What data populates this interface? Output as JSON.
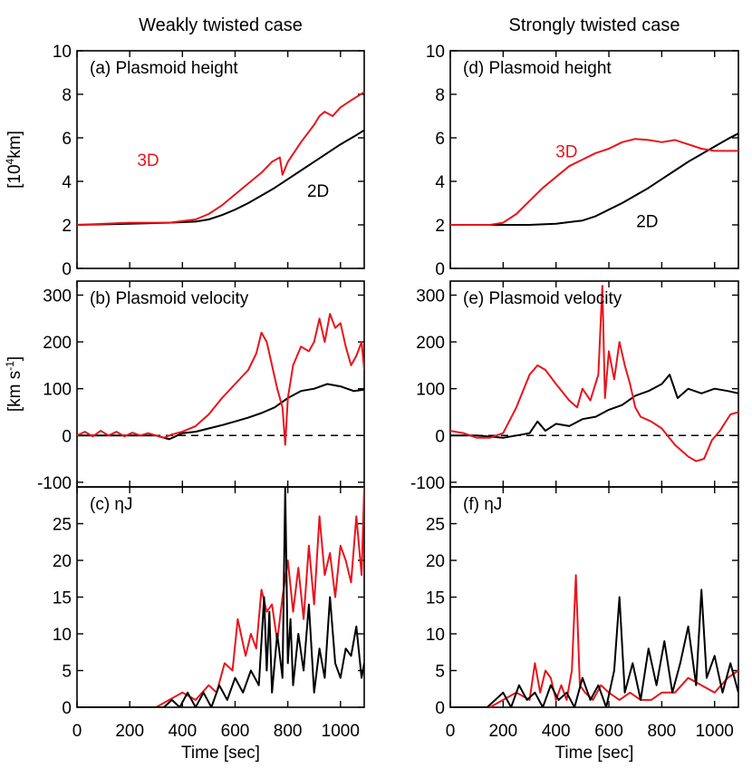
{
  "chart_data": {
    "type": "line",
    "column_titles": [
      "Weakly twisted case",
      "Strongly twisted case"
    ],
    "xlabel": "Time [sec]",
    "xlim": [
      0,
      1090
    ],
    "xticks": [
      0,
      200,
      400,
      600,
      800,
      1000
    ],
    "rows": [
      {
        "ylabel_main": "[10",
        "ylabel_sup": "4",
        "ylabel_tail": "km]",
        "ylim": [
          0,
          10
        ],
        "yticks": [
          0,
          2,
          4,
          6,
          8,
          10
        ],
        "zero_line": false
      },
      {
        "ylabel_main": "[km s",
        "ylabel_sup": "-1",
        "ylabel_tail": "]",
        "ylim": [
          -110,
          330
        ],
        "yticks": [
          -100,
          0,
          100,
          200,
          300
        ],
        "zero_line": true
      },
      {
        "ylabel_main": "",
        "ylabel_sup": "",
        "ylabel_tail": "",
        "ylim": [
          0,
          30
        ],
        "yticks": [
          0,
          5,
          10,
          15,
          20,
          25
        ],
        "zero_line": false
      }
    ],
    "panels": [
      {
        "key": "a",
        "col": 0,
        "row": 0,
        "title": "(a) Plasmoid height",
        "annotations": [
          {
            "text": "3D",
            "color": "#e8141c",
            "x": 270,
            "y": 4.7
          },
          {
            "text": "2D",
            "color": "#000000",
            "x": 915,
            "y": 3.3
          }
        ],
        "series": [
          {
            "name": "2D",
            "color": "#000000",
            "x": [
              0,
              200,
              350,
              450,
              500,
              550,
              600,
              650,
              700,
              750,
              800,
              850,
              900,
              950,
              1000,
              1050,
              1090
            ],
            "y": [
              2.0,
              2.05,
              2.1,
              2.15,
              2.25,
              2.45,
              2.7,
              3.0,
              3.35,
              3.7,
              4.1,
              4.5,
              4.9,
              5.3,
              5.7,
              6.05,
              6.35
            ]
          },
          {
            "name": "3D",
            "color": "#e8141c",
            "x": [
              0,
              200,
              350,
              450,
              500,
              550,
              600,
              650,
              700,
              740,
              770,
              780,
              800,
              850,
              900,
              920,
              940,
              970,
              1000,
              1050,
              1090
            ],
            "y": [
              2.0,
              2.1,
              2.1,
              2.25,
              2.5,
              2.9,
              3.4,
              3.9,
              4.4,
              4.9,
              5.1,
              4.3,
              4.9,
              5.8,
              6.6,
              7.0,
              7.2,
              7.0,
              7.4,
              7.8,
              8.1
            ]
          }
        ]
      },
      {
        "key": "b",
        "col": 0,
        "row": 1,
        "title": "(b) Plasmoid velocity",
        "annotations": [],
        "series": [
          {
            "name": "2D",
            "color": "#000000",
            "x": [
              0,
              100,
              200,
              300,
              350,
              400,
              450,
              500,
              550,
              600,
              650,
              700,
              750,
              800,
              850,
              900,
              950,
              1000,
              1050,
              1090
            ],
            "y": [
              0,
              0,
              0,
              0,
              -8,
              5,
              8,
              15,
              22,
              30,
              38,
              48,
              60,
              80,
              95,
              100,
              110,
              105,
              95,
              98
            ]
          },
          {
            "name": "3D",
            "color": "#e8141c",
            "x": [
              0,
              30,
              60,
              90,
              120,
              150,
              180,
              210,
              240,
              270,
              300,
              330,
              360,
              400,
              450,
              500,
              550,
              600,
              650,
              680,
              700,
              720,
              740,
              760,
              780,
              790,
              800,
              820,
              850,
              880,
              900,
              920,
              940,
              960,
              980,
              1000,
              1020,
              1040,
              1060,
              1080,
              1090
            ],
            "y": [
              0,
              8,
              -2,
              10,
              0,
              8,
              -2,
              6,
              0,
              5,
              0,
              -5,
              2,
              8,
              20,
              45,
              80,
              110,
              140,
              175,
              220,
              200,
              150,
              100,
              60,
              -20,
              80,
              150,
              190,
              180,
              200,
              250,
              200,
              260,
              230,
              240,
              190,
              150,
              170,
              200,
              140
            ]
          }
        ]
      },
      {
        "key": "c",
        "col": 0,
        "row": 2,
        "title": "(c) ηJ",
        "annotations": [],
        "series": [
          {
            "name": "3D",
            "color": "#e8141c",
            "x": [
              0,
              100,
              200,
              300,
              350,
              400,
              450,
              500,
              530,
              560,
              590,
              610,
              640,
              660,
              680,
              700,
              720,
              740,
              760,
              780,
              800,
              820,
              840,
              860,
              880,
              900,
              920,
              940,
              960,
              980,
              1000,
              1020,
              1040,
              1060,
              1080,
              1090
            ],
            "y": [
              0,
              0,
              0,
              0,
              1,
              2,
              1,
              3,
              2,
              6,
              5,
              12,
              7,
              10,
              8,
              16,
              13,
              14,
              9,
              15,
              20,
              13,
              19,
              12,
              22,
              14,
              26,
              18,
              21,
              15,
              22,
              20,
              17,
              26,
              18,
              30
            ]
          },
          {
            "name": "2D",
            "color": "#000000",
            "x": [
              0,
              330,
              360,
              390,
              420,
              450,
              480,
              510,
              540,
              570,
              600,
              630,
              660,
              690,
              710,
              720,
              730,
              740,
              760,
              780,
              790,
              800,
              810,
              820,
              840,
              860,
              880,
              900,
              920,
              940,
              960,
              980,
              1000,
              1020,
              1040,
              1060,
              1080,
              1090
            ],
            "y": [
              0,
              0,
              1,
              0,
              2,
              0,
              2,
              0,
              3,
              1,
              4,
              2,
              5,
              3,
              15,
              5,
              13,
              2,
              10,
              4,
              30,
              6,
              12,
              3,
              10,
              5,
              14,
              2,
              8,
              4,
              15,
              6,
              4,
              8,
              7,
              11,
              4,
              6
            ]
          }
        ]
      },
      {
        "key": "d",
        "col": 1,
        "row": 0,
        "title": "(d) Plasmoid height",
        "annotations": [
          {
            "text": "3D",
            "color": "#e8141c",
            "x": 440,
            "y": 5.1
          },
          {
            "text": "2D",
            "color": "#000000",
            "x": 745,
            "y": 1.9
          }
        ],
        "series": [
          {
            "name": "2D",
            "color": "#000000",
            "x": [
              0,
              200,
              300,
              400,
              500,
              550,
              600,
              650,
              700,
              750,
              800,
              850,
              900,
              950,
              1000,
              1050,
              1090
            ],
            "y": [
              2.0,
              2.0,
              2.0,
              2.05,
              2.2,
              2.4,
              2.7,
              3.0,
              3.35,
              3.7,
              4.1,
              4.5,
              4.9,
              5.25,
              5.6,
              5.95,
              6.2
            ]
          },
          {
            "name": "3D",
            "color": "#e8141c",
            "x": [
              0,
              150,
              200,
              250,
              300,
              350,
              400,
              450,
              500,
              550,
              600,
              650,
              700,
              750,
              800,
              850,
              900,
              950,
              1000,
              1050,
              1090
            ],
            "y": [
              2.0,
              2.0,
              2.1,
              2.5,
              3.1,
              3.7,
              4.2,
              4.7,
              5.0,
              5.3,
              5.5,
              5.8,
              5.95,
              5.9,
              5.8,
              5.9,
              5.7,
              5.5,
              5.4,
              5.4,
              5.4
            ]
          }
        ]
      },
      {
        "key": "e",
        "col": 1,
        "row": 1,
        "title": "(e) Plasmoid velocity",
        "annotations": [],
        "series": [
          {
            "name": "2D",
            "color": "#000000",
            "x": [
              0,
              100,
              200,
              250,
              300,
              330,
              360,
              400,
              450,
              500,
              550,
              600,
              650,
              700,
              750,
              800,
              830,
              860,
              900,
              950,
              1000,
              1050,
              1090
            ],
            "y": [
              0,
              0,
              -5,
              0,
              5,
              30,
              10,
              25,
              20,
              35,
              40,
              55,
              65,
              85,
              95,
              110,
              130,
              80,
              100,
              90,
              100,
              95,
              90
            ]
          },
          {
            "name": "3D",
            "color": "#e8141c",
            "x": [
              0,
              50,
              100,
              150,
              200,
              250,
              300,
              330,
              360,
              400,
              450,
              480,
              500,
              530,
              560,
              575,
              585,
              600,
              620,
              640,
              660,
              680,
              700,
              720,
              760,
              800,
              850,
              900,
              930,
              960,
              990,
              1020,
              1060,
              1090
            ],
            "y": [
              10,
              5,
              -5,
              -5,
              5,
              60,
              130,
              150,
              140,
              110,
              75,
              60,
              100,
              75,
              130,
              320,
              80,
              180,
              120,
              200,
              150,
              110,
              60,
              40,
              30,
              15,
              -20,
              -45,
              -55,
              -50,
              -10,
              10,
              45,
              50
            ]
          }
        ]
      },
      {
        "key": "f",
        "col": 1,
        "row": 2,
        "title": "(f) ηJ",
        "annotations": [],
        "series": [
          {
            "name": "3D",
            "color": "#e8141c",
            "x": [
              0,
              150,
              200,
              250,
              300,
              320,
              340,
              360,
              380,
              400,
              420,
              440,
              460,
              475,
              490,
              510,
              540,
              570,
              600,
              640,
              680,
              720,
              760,
              800,
              850,
              900,
              950,
              1000,
              1050,
              1090
            ],
            "y": [
              0,
              0,
              1,
              2,
              1,
              6,
              2,
              5,
              4,
              1,
              3,
              1,
              5,
              18,
              3,
              2,
              1,
              3,
              2,
              1,
              2,
              1,
              1,
              2,
              2,
              4,
              3,
              2,
              4,
              5
            ]
          },
          {
            "name": "2D",
            "color": "#000000",
            "x": [
              0,
              140,
              170,
              200,
              230,
              260,
              290,
              320,
              350,
              380,
              410,
              440,
              470,
              500,
              530,
              560,
              590,
              620,
              640,
              660,
              690,
              720,
              750,
              780,
              810,
              840,
              870,
              900,
              930,
              950,
              970,
              1000,
              1030,
              1060,
              1090
            ],
            "y": [
              0,
              0,
              1,
              2,
              0,
              3,
              1,
              2,
              0,
              3,
              1,
              2,
              0,
              4,
              1,
              3,
              0,
              5,
              15,
              2,
              6,
              1,
              8,
              3,
              9,
              2,
              6,
              11,
              3,
              16,
              4,
              7,
              2,
              6,
              2
            ]
          }
        ]
      }
    ]
  }
}
